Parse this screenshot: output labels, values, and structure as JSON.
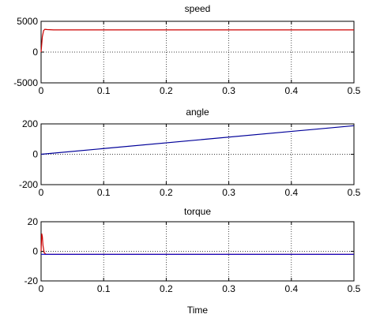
{
  "chart_data": [
    {
      "type": "line",
      "title": "speed",
      "xlabel": "",
      "ylabel": "",
      "xlim": [
        0,
        0.5
      ],
      "ylim": [
        -5000,
        5000
      ],
      "xticks": [
        0,
        0.1,
        0.2,
        0.3,
        0.4,
        0.5
      ],
      "xtick_labels": [
        "0",
        "0.1",
        "0.2",
        "0.3",
        "0.4",
        "0.5"
      ],
      "yticks": [
        -5000,
        0,
        5000
      ],
      "ytick_labels": [
        "-5000",
        "0",
        "5000"
      ],
      "grid": true,
      "series": [
        {
          "color": "#cc0000",
          "x": [
            0,
            0.002,
            0.004,
            0.006,
            0.01,
            0.02,
            0.05,
            0.1,
            0.15,
            0.2,
            0.25,
            0.3,
            0.35,
            0.4,
            0.45,
            0.5
          ],
          "y": [
            0,
            2500,
            3500,
            3700,
            3650,
            3600,
            3600,
            3600,
            3600,
            3600,
            3600,
            3600,
            3600,
            3600,
            3600,
            3600
          ]
        }
      ]
    },
    {
      "type": "line",
      "title": "angle",
      "xlabel": "",
      "ylabel": "",
      "xlim": [
        0,
        0.5
      ],
      "ylim": [
        -200,
        200
      ],
      "xticks": [
        0,
        0.1,
        0.2,
        0.3,
        0.4,
        0.5
      ],
      "xtick_labels": [
        "0",
        "0.1",
        "0.2",
        "0.3",
        "0.4",
        "0.5"
      ],
      "yticks": [
        -200,
        0,
        200
      ],
      "ytick_labels": [
        "-200",
        "0",
        "200"
      ],
      "grid": true,
      "series": [
        {
          "color": "#000099",
          "x": [
            0,
            0.5
          ],
          "y": [
            0,
            188
          ]
        }
      ]
    },
    {
      "type": "line",
      "title": "torque",
      "xlabel": "Time",
      "ylabel": "",
      "xlim": [
        0,
        0.5
      ],
      "ylim": [
        -20,
        20
      ],
      "xticks": [
        0,
        0.1,
        0.2,
        0.3,
        0.4,
        0.5
      ],
      "xtick_labels": [
        "0",
        "0.1",
        "0.2",
        "0.3",
        "0.4",
        "0.5"
      ],
      "yticks": [
        -20,
        0,
        20
      ],
      "ytick_labels": [
        "-20",
        "0",
        "20"
      ],
      "grid": true,
      "series": [
        {
          "color": "#cc0000",
          "x": [
            0,
            0.001,
            0.002,
            0.003,
            0.005,
            0.008,
            0.012,
            0.02,
            0.05,
            0.1,
            0.2,
            0.3,
            0.4,
            0.5
          ],
          "y": [
            0,
            12,
            10,
            4,
            -1,
            -2,
            -2,
            -2,
            -2,
            -2,
            -2,
            -2,
            -2,
            -2
          ]
        },
        {
          "color": "#0000cc",
          "x": [
            0,
            0.005,
            0.01,
            0.1,
            0.2,
            0.3,
            0.4,
            0.5
          ],
          "y": [
            -2,
            -2,
            -2,
            -2,
            -2,
            -2,
            -2,
            -2
          ]
        }
      ]
    }
  ]
}
